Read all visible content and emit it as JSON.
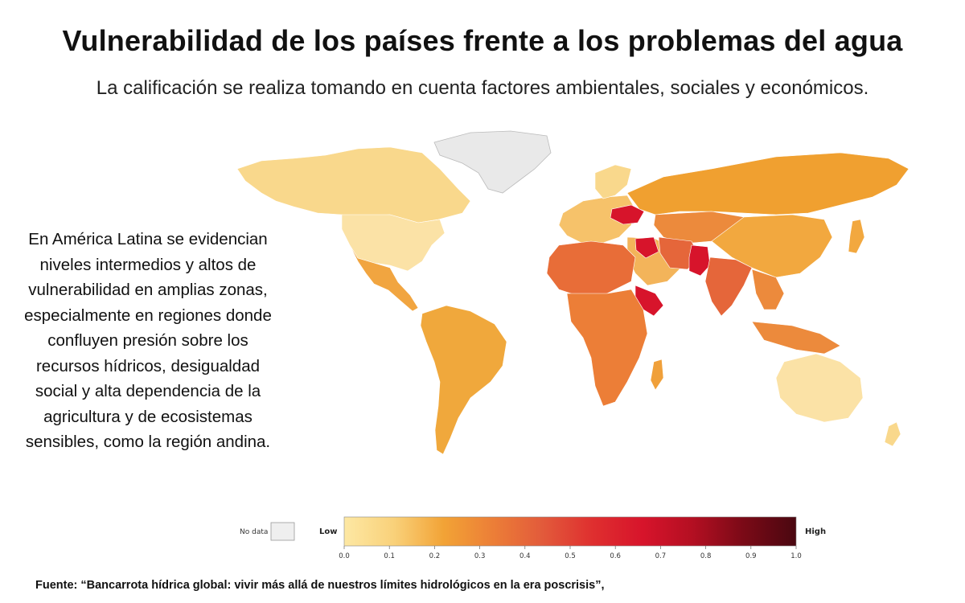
{
  "title": "Vulnerabilidad de los países frente a los problemas del agua",
  "subtitle": "La calificación se realiza tomando en cuenta factores ambientales, sociales y económicos.",
  "annotation": "En América Latina se evidencian niveles intermedios y altos de vulnerabilidad en amplias zonas, especialmente en regiones donde confluyen presión sobre los recursos hídricos, desigualdad social y alta dependencia de la agricultura y de ecosistemas sensibles, como la región andina.",
  "source": "Fuente: “Bancarrota hídrica global: vivir más allá de nuestros límites hidrológicos en la era poscrisis”,",
  "legend": {
    "no_data_label": "No data",
    "low_label": "Low",
    "high_label": "High",
    "ticks": [
      "0.0",
      "0.1",
      "0.2",
      "0.3",
      "0.4",
      "0.5",
      "0.6",
      "0.7",
      "0.8",
      "0.9",
      "1.0"
    ],
    "gradient_colors": [
      "#fde8a4",
      "#f9d17a",
      "#f2a336",
      "#ec7e37",
      "#e25a3b",
      "#df2f2f",
      "#d7142b",
      "#b40f22",
      "#7c0a17",
      "#4a0710"
    ],
    "no_data_color": "#efefef"
  },
  "colors": {
    "low": "#f8d27a",
    "mid_low": "#f0a43a",
    "mid": "#ec8a3c",
    "mid_high": "#e5663a",
    "high": "#d7142b",
    "no_data": "#e9e9e9"
  }
}
